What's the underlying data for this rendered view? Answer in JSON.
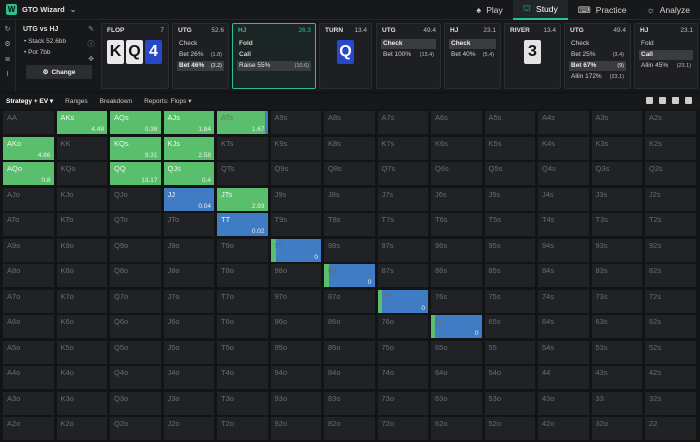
{
  "app": {
    "title": "GTO Wizard"
  },
  "nav": [
    {
      "label": "Play",
      "icon": "spade-icon"
    },
    {
      "label": "Study",
      "icon": "study-cap-icon",
      "active": true
    },
    {
      "label": "Practice",
      "icon": "gamepad-icon"
    },
    {
      "label": "Analyze",
      "icon": "analyze-icon"
    }
  ],
  "spot": {
    "title": "UTG vs HJ",
    "stack": "Stack 52.6bb",
    "pot": "Pot 7bb",
    "change_label": "Change"
  },
  "flop": {
    "label": "FLOP",
    "pot": "7",
    "cards": [
      "K",
      "Q",
      "4"
    ]
  },
  "utg1": {
    "label": "UTG",
    "stack": "52.6",
    "rows": [
      {
        "a": "Check",
        "p": ""
      },
      {
        "a": "Bet 26%",
        "p": "(1.8)"
      },
      {
        "a": "Bet 46%",
        "p": "(3.2)"
      }
    ]
  },
  "hj1": {
    "label": "HJ",
    "stack": "26.3",
    "rows": [
      {
        "a": "Fold",
        "p": ""
      },
      {
        "a": "Call",
        "p": ""
      },
      {
        "a": "Raise 55%",
        "p": "(10.6)"
      }
    ]
  },
  "turn": {
    "label": "TURN",
    "pot": "13.4",
    "card": "Q"
  },
  "utg2": {
    "label": "UTG",
    "stack": "49.4",
    "rows": [
      {
        "a": "Check",
        "p": ""
      },
      {
        "a": "Bet 100%",
        "p": "(13.4)"
      }
    ]
  },
  "hj2": {
    "label": "HJ",
    "stack": "23.1",
    "rows": [
      {
        "a": "Check",
        "p": ""
      },
      {
        "a": "Bet 40%",
        "p": "(5.4)"
      }
    ]
  },
  "river": {
    "label": "RIVER",
    "pot": "13.4",
    "card": "3"
  },
  "utg3": {
    "label": "UTG",
    "stack": "49.4",
    "rows": [
      {
        "a": "Check",
        "p": ""
      },
      {
        "a": "Bet 25%",
        "p": "(3.4)"
      },
      {
        "a": "Bet 67%",
        "p": "(9)"
      },
      {
        "a": "Allin 172%",
        "p": "(23.1)"
      }
    ]
  },
  "hj3": {
    "label": "HJ",
    "stack": "23.1",
    "rows": [
      {
        "a": "Fold",
        "p": ""
      },
      {
        "a": "Call",
        "p": ""
      },
      {
        "a": "Allin 45%",
        "p": "(23.1)"
      }
    ]
  },
  "tabs": [
    {
      "label": "Strategy + EV",
      "active": true
    },
    {
      "label": "Ranges"
    },
    {
      "label": "Breakdown"
    },
    {
      "label": "Reports: Flops"
    }
  ],
  "colors": {
    "accent": "#2bc08f",
    "call": "#59bf6d",
    "raise": "#3f7cc4",
    "cell": "#212225"
  },
  "ranks": [
    "A",
    "K",
    "Q",
    "J",
    "T",
    "9",
    "8",
    "7",
    "6",
    "5",
    "4",
    "3",
    "2"
  ],
  "hands": [
    {
      "r": 0,
      "c": 1,
      "t": "AKs",
      "s": "g",
      "v": "4.48"
    },
    {
      "r": 0,
      "c": 2,
      "t": "AQs",
      "s": "g",
      "v": "0.38"
    },
    {
      "r": 0,
      "c": 3,
      "t": "AJs",
      "s": "g",
      "v": "1.84"
    },
    {
      "r": 0,
      "c": 4,
      "t": "ATs",
      "s": "gb",
      "v": "1.67"
    },
    {
      "r": 1,
      "c": 0,
      "t": "AKo",
      "s": "g",
      "v": "4.86"
    },
    {
      "r": 1,
      "c": 2,
      "t": "KQs",
      "s": "g",
      "v": "9.31"
    },
    {
      "r": 1,
      "c": 3,
      "t": "KJs",
      "s": "g",
      "v": "2.58"
    },
    {
      "r": 2,
      "c": 0,
      "t": "AQo",
      "s": "g",
      "v": "0.8"
    },
    {
      "r": 2,
      "c": 2,
      "t": "QQ",
      "s": "g",
      "v": "13.17"
    },
    {
      "r": 2,
      "c": 3,
      "t": "QJs",
      "s": "g",
      "v": "0.4"
    },
    {
      "r": 3,
      "c": 3,
      "t": "JJ",
      "s": "b",
      "v": "0.04"
    },
    {
      "r": 3,
      "c": 4,
      "t": "JTs",
      "s": "g",
      "v": "2.93"
    },
    {
      "r": 4,
      "c": 4,
      "t": "TT",
      "s": "b",
      "v": "0.02"
    },
    {
      "r": 5,
      "c": 5,
      "t": "99",
      "s": "bg",
      "v": "0"
    },
    {
      "r": 6,
      "c": 6,
      "t": "88",
      "s": "bg",
      "v": "0"
    },
    {
      "r": 7,
      "c": 7,
      "t": "77",
      "s": "bgt",
      "v": "0"
    },
    {
      "r": 8,
      "c": 8,
      "t": "66",
      "s": "bgt",
      "v": "0"
    }
  ]
}
